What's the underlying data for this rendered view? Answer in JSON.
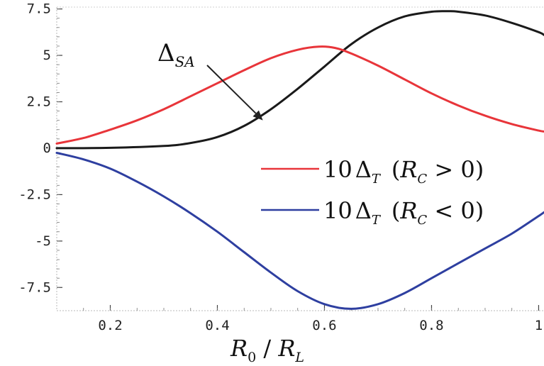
{
  "chart_data": {
    "type": "line",
    "xlabel": {
      "main": "R",
      "sub1": "0",
      "sep": " / ",
      "main2": "R",
      "sub2": "L"
    },
    "xlim": [
      0.1,
      1.01
    ],
    "ylim": [
      -8.75,
      7.6
    ],
    "x_ticks": [
      {
        "value": 0.2,
        "label": "0.2"
      },
      {
        "value": 0.4,
        "label": "0.4"
      },
      {
        "value": 0.6,
        "label": "0.6"
      },
      {
        "value": 0.8,
        "label": "0.8"
      },
      {
        "value": 1.0,
        "label": "1"
      }
    ],
    "y_ticks": [
      {
        "value": 7.5,
        "label": "7.5"
      },
      {
        "value": 5,
        "label": "5"
      },
      {
        "value": 2.5,
        "label": "2.5"
      },
      {
        "value": 0,
        "label": "0"
      },
      {
        "value": -2.5,
        "label": "-2.5"
      },
      {
        "value": -5,
        "label": "-5"
      },
      {
        "value": -7.5,
        "label": "-7.5"
      }
    ],
    "grid": false,
    "legend_position": "center-right",
    "series": [
      {
        "key": "delta_sa",
        "color": "#1a1a1a",
        "x": [
          0.1,
          0.2,
          0.3,
          0.35,
          0.4,
          0.45,
          0.5,
          0.55,
          0.6,
          0.65,
          0.7,
          0.75,
          0.8,
          0.83,
          0.85,
          0.9,
          0.95,
          1.0,
          1.01
        ],
        "y": [
          0.0,
          0.02,
          0.12,
          0.28,
          0.6,
          1.2,
          2.1,
          3.2,
          4.4,
          5.6,
          6.5,
          7.1,
          7.35,
          7.38,
          7.35,
          7.15,
          6.75,
          6.25,
          6.1
        ]
      },
      {
        "key": "t_pos",
        "color": "#e8353a",
        "x": [
          0.1,
          0.15,
          0.2,
          0.25,
          0.3,
          0.35,
          0.4,
          0.45,
          0.5,
          0.55,
          0.59,
          0.62,
          0.65,
          0.7,
          0.75,
          0.8,
          0.85,
          0.9,
          0.95,
          1.0,
          1.01
        ],
        "y": [
          0.25,
          0.55,
          1.0,
          1.5,
          2.1,
          2.8,
          3.5,
          4.2,
          4.85,
          5.3,
          5.47,
          5.4,
          5.1,
          4.45,
          3.7,
          2.95,
          2.3,
          1.75,
          1.3,
          0.95,
          0.9
        ]
      },
      {
        "key": "t_neg",
        "color": "#2e3fa0",
        "x": [
          0.1,
          0.15,
          0.2,
          0.25,
          0.3,
          0.35,
          0.4,
          0.45,
          0.5,
          0.55,
          0.6,
          0.65,
          0.7,
          0.75,
          0.8,
          0.85,
          0.9,
          0.95,
          1.0,
          1.01
        ],
        "y": [
          -0.25,
          -0.6,
          -1.1,
          -1.8,
          -2.6,
          -3.5,
          -4.5,
          -5.6,
          -6.7,
          -7.7,
          -8.4,
          -8.65,
          -8.4,
          -7.8,
          -7.0,
          -6.2,
          -5.4,
          -4.6,
          -3.65,
          -3.45
        ]
      }
    ],
    "legend": [
      {
        "key": "t_pos",
        "color": "#e8353a",
        "factor": "10",
        "delta_sub": "T",
        "cond_var": "R",
        "cond_sub": "C",
        "cond_rel": " > 0)"
      },
      {
        "key": "t_neg",
        "color": "#2e3fa0",
        "factor": "10",
        "delta_sub": "T",
        "cond_var": "R",
        "cond_sub": "C",
        "cond_rel": " < 0)"
      }
    ],
    "annotation": {
      "symbol": "Δ",
      "sub": "SA",
      "arrow_target": {
        "x": 0.485,
        "y": 1.5
      }
    }
  }
}
